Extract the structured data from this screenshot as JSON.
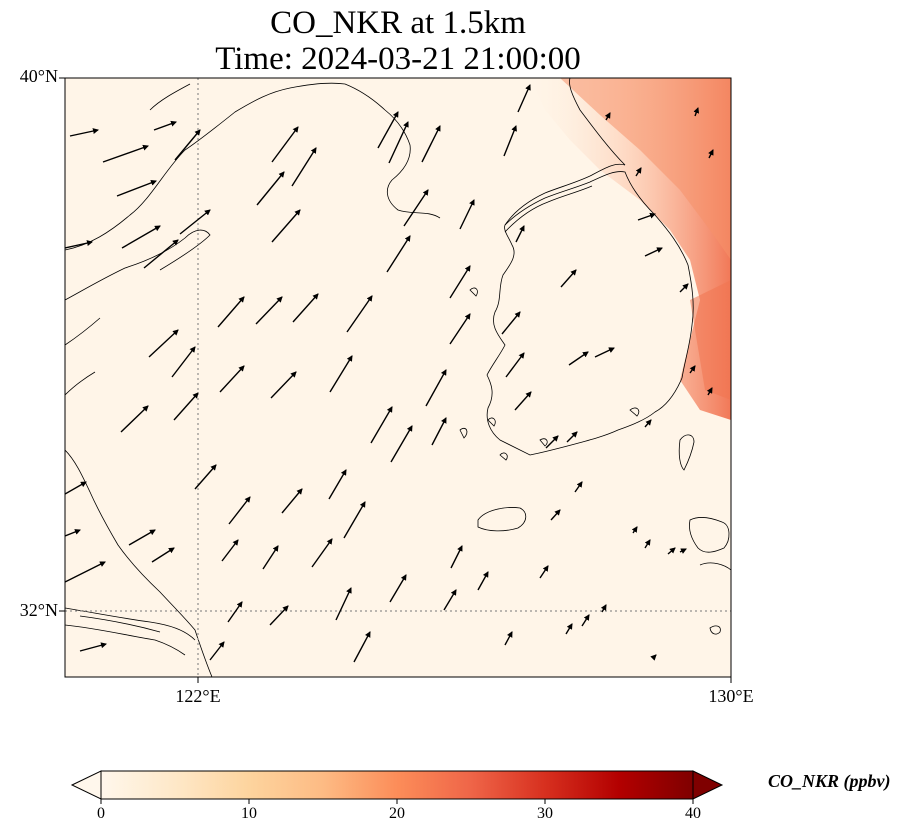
{
  "title": {
    "line1": "CO_NKR at 1.5km",
    "line2": "Time: 2024-03-21 21:00:00"
  },
  "map": {
    "extent": {
      "lon_min": 119,
      "lon_max": 130,
      "lat_min": 31,
      "lat_max": 40
    },
    "lat_ticks": [
      {
        "value": 40,
        "label": "40°N"
      },
      {
        "value": 32,
        "label": "32°N"
      }
    ],
    "lon_ticks": [
      {
        "value": 122,
        "label": "122°E"
      },
      {
        "value": 130,
        "label": "130°E"
      }
    ],
    "gridlines": {
      "lon": [
        122
      ],
      "lat": [
        32
      ],
      "style": "dotted gray"
    }
  },
  "colorbar": {
    "label": "CO_NKR (ppbv)",
    "ticks": [
      "0",
      "10",
      "20",
      "30",
      "40"
    ],
    "range": [
      0,
      40
    ],
    "colormap": "OrRd",
    "extend": "both"
  },
  "colors": {
    "background_field": "#fff5e8",
    "high_concentration": "#ef6a45",
    "coastline": "#000000"
  }
}
